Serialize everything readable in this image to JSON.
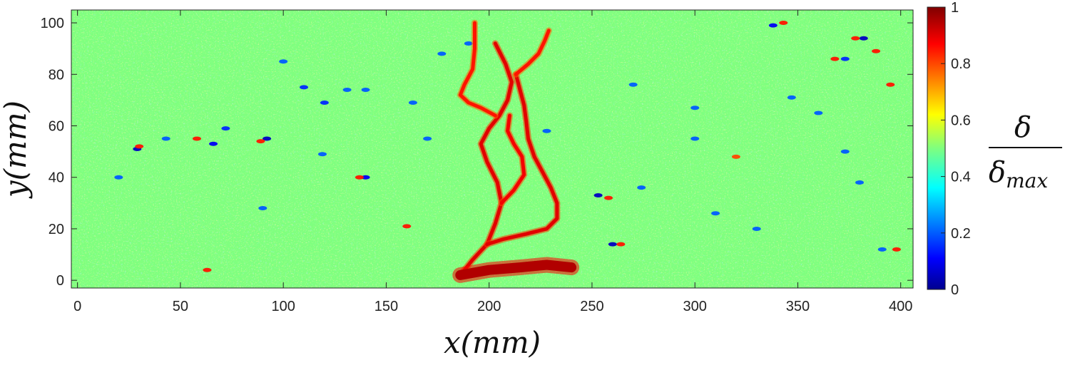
{
  "chart_data": {
    "type": "heatmap",
    "title": "",
    "xlabel": "x(mm)",
    "ylabel": "y(mm)",
    "colorbar_label": {
      "numerator": "δ",
      "denominator_symbol": "δ",
      "denominator_subscript": "max"
    },
    "xlim": [
      -3,
      406
    ],
    "ylim": [
      -3,
      105
    ],
    "x_ticks": [
      0,
      50,
      100,
      150,
      200,
      250,
      300,
      350,
      400
    ],
    "y_ticks": [
      0,
      20,
      40,
      60,
      80,
      100
    ],
    "color_range": [
      0,
      1
    ],
    "colorbar_ticks": [
      0,
      0.2,
      0.4,
      0.6,
      0.8,
      1
    ],
    "colormap": "jet",
    "background_value": 0.5,
    "grid": false,
    "crack_paths": [
      {
        "name": "main-branch-left",
        "value": 0.9,
        "points": [
          [
            186,
            2
          ],
          [
            192,
            8
          ],
          [
            199,
            14
          ],
          [
            203,
            22
          ],
          [
            206,
            30
          ],
          [
            204,
            38
          ],
          [
            199,
            46
          ],
          [
            196,
            53
          ],
          [
            200,
            59
          ],
          [
            205,
            64
          ],
          [
            209,
            70
          ],
          [
            211,
            77
          ],
          [
            208,
            84
          ],
          [
            203,
            92
          ]
        ]
      },
      {
        "name": "main-branch-right",
        "value": 0.9,
        "points": [
          [
            199,
            14
          ],
          [
            207,
            16
          ],
          [
            218,
            18
          ],
          [
            228,
            20
          ],
          [
            233,
            24
          ],
          [
            233,
            30
          ],
          [
            230,
            36
          ],
          [
            226,
            42
          ],
          [
            222,
            48
          ],
          [
            219,
            55
          ],
          [
            218,
            62
          ],
          [
            217,
            68
          ],
          [
            215,
            74
          ],
          [
            213,
            80
          ]
        ]
      },
      {
        "name": "mid-branch",
        "value": 0.88,
        "points": [
          [
            206,
            30
          ],
          [
            212,
            35
          ],
          [
            217,
            41
          ],
          [
            216,
            48
          ],
          [
            212,
            53
          ],
          [
            209,
            58
          ],
          [
            210,
            64
          ]
        ]
      },
      {
        "name": "upper-left-branch",
        "value": 0.85,
        "points": [
          [
            203,
            64
          ],
          [
            196,
            67
          ],
          [
            190,
            69
          ],
          [
            186,
            72
          ],
          [
            188,
            76
          ],
          [
            192,
            82
          ],
          [
            193,
            90
          ],
          [
            193,
            100
          ]
        ]
      },
      {
        "name": "upper-right-branch",
        "value": 0.85,
        "points": [
          [
            213,
            80
          ],
          [
            219,
            84
          ],
          [
            224,
            88
          ],
          [
            227,
            93
          ],
          [
            229,
            97
          ]
        ]
      },
      {
        "name": "base-spread",
        "value": 0.95,
        "points": [
          [
            186,
            2
          ],
          [
            200,
            4
          ],
          [
            215,
            5
          ],
          [
            228,
            6
          ],
          [
            240,
            5
          ]
        ]
      }
    ],
    "spots": [
      {
        "x": 29,
        "y": 51,
        "value": 0.05
      },
      {
        "x": 30,
        "y": 52,
        "value": 0.85
      },
      {
        "x": 66,
        "y": 53,
        "value": 0.1
      },
      {
        "x": 92,
        "y": 55,
        "value": 0.05
      },
      {
        "x": 89,
        "y": 54,
        "value": 0.85
      },
      {
        "x": 140,
        "y": 40,
        "value": 0.1
      },
      {
        "x": 137,
        "y": 40,
        "value": 0.85
      },
      {
        "x": 72,
        "y": 59,
        "value": 0.15
      },
      {
        "x": 110,
        "y": 75,
        "value": 0.15
      },
      {
        "x": 131,
        "y": 74,
        "value": 0.2
      },
      {
        "x": 120,
        "y": 69,
        "value": 0.15
      },
      {
        "x": 163,
        "y": 69,
        "value": 0.2
      },
      {
        "x": 170,
        "y": 55,
        "value": 0.2
      },
      {
        "x": 177,
        "y": 88,
        "value": 0.2
      },
      {
        "x": 270,
        "y": 76,
        "value": 0.2
      },
      {
        "x": 253,
        "y": 33,
        "value": 0.05
      },
      {
        "x": 258,
        "y": 32,
        "value": 0.85
      },
      {
        "x": 274,
        "y": 36,
        "value": 0.2
      },
      {
        "x": 260,
        "y": 14,
        "value": 0.05
      },
      {
        "x": 264,
        "y": 14,
        "value": 0.85
      },
      {
        "x": 300,
        "y": 55,
        "value": 0.2
      },
      {
        "x": 320,
        "y": 48,
        "value": 0.8
      },
      {
        "x": 338,
        "y": 99,
        "value": 0.1
      },
      {
        "x": 343,
        "y": 100,
        "value": 0.85
      },
      {
        "x": 382,
        "y": 94,
        "value": 0.05
      },
      {
        "x": 378,
        "y": 94,
        "value": 0.85
      },
      {
        "x": 373,
        "y": 86,
        "value": 0.15
      },
      {
        "x": 368,
        "y": 86,
        "value": 0.85
      },
      {
        "x": 395,
        "y": 76,
        "value": 0.85
      },
      {
        "x": 388,
        "y": 89,
        "value": 0.85
      },
      {
        "x": 347,
        "y": 71,
        "value": 0.2
      },
      {
        "x": 391,
        "y": 12,
        "value": 0.2
      },
      {
        "x": 398,
        "y": 12,
        "value": 0.85
      },
      {
        "x": 373,
        "y": 50,
        "value": 0.2
      },
      {
        "x": 360,
        "y": 65,
        "value": 0.2
      },
      {
        "x": 300,
        "y": 67,
        "value": 0.2
      },
      {
        "x": 90,
        "y": 28,
        "value": 0.2
      },
      {
        "x": 119,
        "y": 49,
        "value": 0.2
      },
      {
        "x": 43,
        "y": 55,
        "value": 0.2
      },
      {
        "x": 58,
        "y": 55,
        "value": 0.85
      },
      {
        "x": 160,
        "y": 21,
        "value": 0.85
      },
      {
        "x": 190,
        "y": 92,
        "value": 0.2
      },
      {
        "x": 140,
        "y": 74,
        "value": 0.2
      },
      {
        "x": 228,
        "y": 58,
        "value": 0.2
      },
      {
        "x": 310,
        "y": 26,
        "value": 0.2
      },
      {
        "x": 330,
        "y": 20,
        "value": 0.2
      },
      {
        "x": 20,
        "y": 40,
        "value": 0.2
      },
      {
        "x": 63,
        "y": 4,
        "value": 0.85
      },
      {
        "x": 100,
        "y": 85,
        "value": 0.2
      },
      {
        "x": 380,
        "y": 38,
        "value": 0.2
      }
    ]
  }
}
